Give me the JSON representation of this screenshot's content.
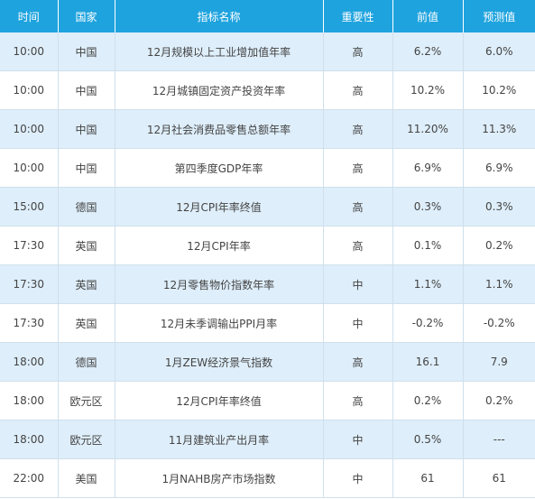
{
  "headers": [
    "时间",
    "国家",
    "指标名称",
    "重要性",
    "前值",
    "预测值"
  ],
  "rows": [
    [
      "10:00",
      "中国",
      "12月规模以上工业增加值年率",
      "高",
      "6.2%",
      "6.0%"
    ],
    [
      "10:00",
      "中国",
      "12月城镇固定资产投资年率",
      "高",
      "10.2%",
      "10.2%"
    ],
    [
      "10:00",
      "中国",
      "12月社会消费品零售总额年率",
      "高",
      "11.20%",
      "11.3%"
    ],
    [
      "10:00",
      "中国",
      "第四季度GDP年率",
      "高",
      "6.9%",
      "6.9%"
    ],
    [
      "15:00",
      "德国",
      "12月CPI年率终值",
      "高",
      "0.3%",
      "0.3%"
    ],
    [
      "17:30",
      "英国",
      "12月CPI年率",
      "高",
      "0.1%",
      "0.2%"
    ],
    [
      "17:30",
      "英国",
      "12月零售物价指数年率",
      "中",
      "1.1%",
      "1.1%"
    ],
    [
      "17:30",
      "英国",
      "12月未季调输出PPI月率",
      "中",
      "-0.2%",
      "-0.2%"
    ],
    [
      "18:00",
      "德国",
      "1月ZEW经济景气指数",
      "高",
      "16.1",
      "7.9"
    ],
    [
      "18:00",
      "欧元区",
      "12月CPI年率终值",
      "高",
      "0.2%",
      "0.2%"
    ],
    [
      "18:00",
      "欧元区",
      "11月建筑业产出月率",
      "中",
      "0.5%",
      "---"
    ],
    [
      "22:00",
      "美国",
      "1月NAHB房产市场指数",
      "中",
      "61",
      "61"
    ]
  ]
}
